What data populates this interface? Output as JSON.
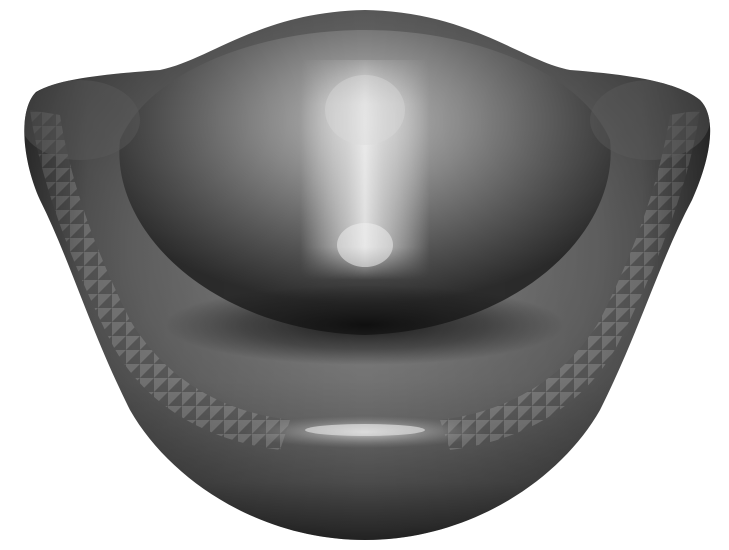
{
  "scene": {
    "subject": "shaded-3d-mesh-surface",
    "background_color": "#ffffff",
    "surface_color_base": "#6e6e6e",
    "surface_color_highlight": "#d4d4d4",
    "surface_color_shadow": "#1e1e1e"
  }
}
